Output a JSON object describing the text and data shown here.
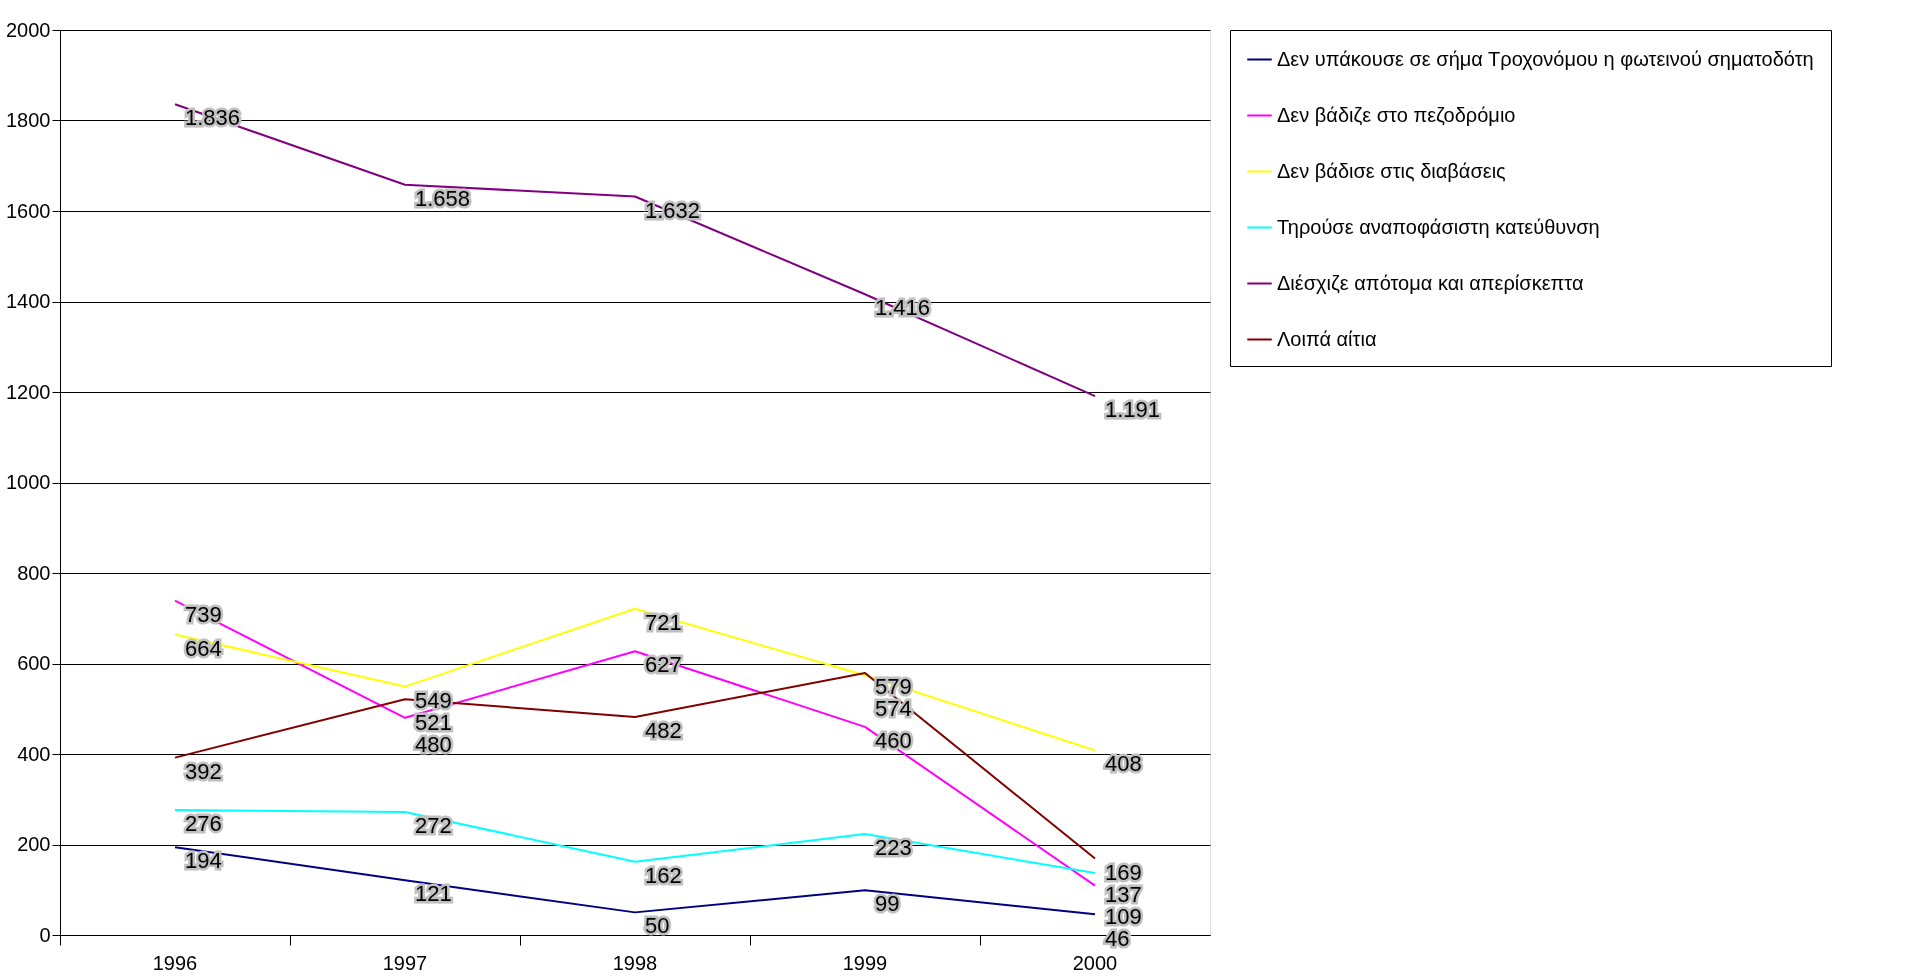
{
  "chart_data": {
    "type": "line",
    "categories": [
      "1996",
      "1997",
      "1998",
      "1999",
      "2000"
    ],
    "ylim": [
      0,
      2000
    ],
    "yticks": [
      0,
      200,
      400,
      600,
      800,
      1000,
      1200,
      1400,
      1600,
      1800,
      2000
    ],
    "grid": "y",
    "legend": "right",
    "marker": "none",
    "series": [
      {
        "name": "Δεν υπάκουσε σε σήμα Τροχονόμου η φωτεινού σηματοδότη",
        "color": "#000080",
        "values": [
          194,
          121,
          50,
          99,
          46
        ],
        "value_labels": [
          "194",
          "121",
          "50",
          "99",
          "46"
        ]
      },
      {
        "name": "Δεν βάδιζε στο πεζοδρόμιο",
        "color": "#ff00ff",
        "values": [
          739,
          480,
          627,
          460,
          109
        ],
        "value_labels": [
          "739",
          "480",
          "627",
          "460",
          "109"
        ]
      },
      {
        "name": "Δεν βάδισε στις διαβάσεις",
        "color": "#ffff00",
        "values": [
          664,
          549,
          721,
          574,
          408
        ],
        "value_labels": [
          "664",
          "549",
          "721",
          "574",
          "408"
        ]
      },
      {
        "name": "Τηρούσε αναποφάσιστη κατεύθυνση",
        "color": "#00ffff",
        "values": [
          276,
          272,
          162,
          223,
          137
        ],
        "value_labels": [
          "276",
          "272",
          "162",
          "223",
          "137"
        ]
      },
      {
        "name": "Διέσχιζε απότομα και απερίσκεπτα",
        "color": "#800080",
        "values": [
          1836,
          1658,
          1632,
          1416,
          1191
        ],
        "value_labels": [
          "1.836",
          "1.658",
          "1.632",
          "1.416",
          "1.191"
        ]
      },
      {
        "name": "Λοιπά αίτια",
        "color": "#800000",
        "values": [
          392,
          521,
          482,
          579,
          169
        ],
        "value_labels": [
          "392",
          "521",
          "482",
          "579",
          "169"
        ]
      }
    ]
  }
}
